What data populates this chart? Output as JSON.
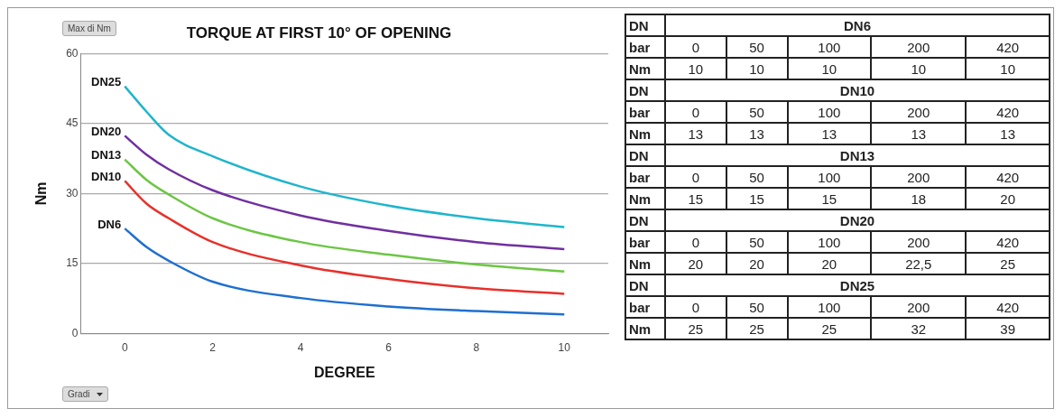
{
  "chart_data": [
    {
      "type": "line",
      "title": "TORQUE AT FIRST 10° OF OPENING",
      "xlabel": "DEGREE",
      "ylabel": "Nm",
      "x": [
        0,
        0.5,
        1,
        2,
        4,
        6,
        8,
        10
      ],
      "series": [
        {
          "name": "DN25",
          "color": "#1fb5cc",
          "values": [
            53.0,
            47.5,
            42.6,
            38.0,
            31.5,
            27.4,
            24.7,
            22.8
          ]
        },
        {
          "name": "DN20",
          "color": "#7030a0",
          "values": [
            42.4,
            38.3,
            35.2,
            30.7,
            25.3,
            22.0,
            19.6,
            18.1
          ]
        },
        {
          "name": "DN13",
          "color": "#6cc644",
          "values": [
            37.3,
            32.9,
            29.8,
            24.7,
            19.6,
            16.9,
            14.8,
            13.3
          ]
        },
        {
          "name": "DN10",
          "color": "#e8302a",
          "values": [
            32.7,
            27.8,
            24.7,
            19.6,
            14.6,
            11.7,
            9.7,
            8.5
          ]
        },
        {
          "name": "DN6",
          "color": "#1f6fd0",
          "values": [
            22.5,
            18.5,
            15.6,
            11.1,
            7.6,
            5.8,
            4.8,
            4.1
          ]
        }
      ],
      "xlim": [
        -1,
        11
      ],
      "xticks": [
        0,
        2,
        4,
        6,
        8,
        10
      ],
      "ylim": [
        0,
        60
      ],
      "yticks": [
        0,
        15,
        30,
        45,
        60
      ],
      "grid": "y",
      "legend": false,
      "marker": "none",
      "line_style": "solid",
      "annotations": [
        "Max di Nm",
        "Gradi"
      ]
    },
    {
      "type": "other",
      "annotations": [
        "DN",
        "DN6",
        "bar",
        "0",
        "50",
        "100",
        "200",
        "420",
        "Nm",
        "10",
        "10",
        "10",
        "10",
        "10",
        "DN",
        "DN10",
        "bar",
        "0",
        "50",
        "100",
        "200",
        "420",
        "Nm",
        "13",
        "13",
        "13",
        "13",
        "13",
        "DN",
        "DN13",
        "bar",
        "0",
        "50",
        "100",
        "200",
        "420",
        "Nm",
        "15",
        "15",
        "15",
        "18",
        "20",
        "DN",
        "DN20",
        "bar",
        "0",
        "50",
        "100",
        "200",
        "420",
        "Nm",
        "20",
        "20",
        "20",
        "22,5",
        "25",
        "DN",
        "DN25",
        "bar",
        "0",
        "50",
        "100",
        "200",
        "420",
        "Nm",
        "25",
        "25",
        "25",
        "32",
        "39"
      ]
    }
  ]
}
